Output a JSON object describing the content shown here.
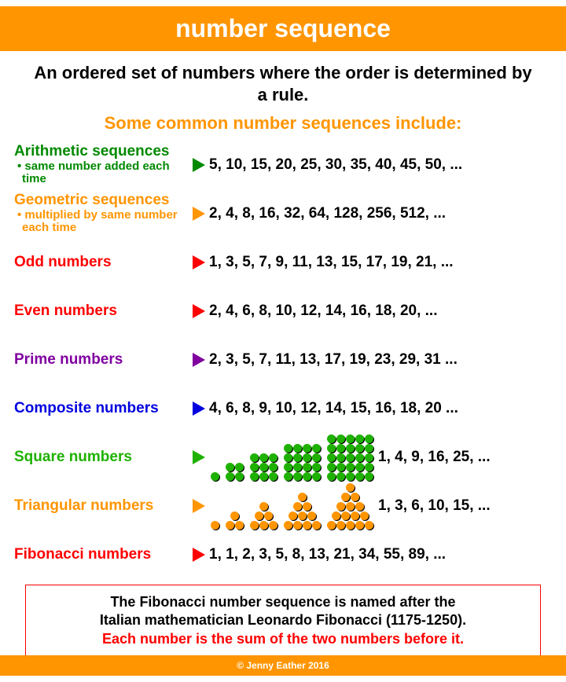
{
  "colors": {
    "orange": "#ff9500",
    "green": "#008a00",
    "red": "#ff0000",
    "purple": "#8000a0",
    "blue": "#0000e0",
    "lime": "#1eb100",
    "black": "#000000"
  },
  "title": "number sequence",
  "definition": "An ordered set of numbers where the order is determined by a rule.",
  "subtitle": "Some common number sequences include:",
  "rows": [
    {
      "label": "Arithmetic sequences",
      "sub": "• same number added each time",
      "label_color": "green",
      "arrow_color": "green",
      "sequence": "5, 10, 15, 20, 25, 30, 35, 40, 45, 50, ..."
    },
    {
      "label": "Geometric sequences",
      "sub": "• multiplied by same number each time",
      "label_color": "orange",
      "arrow_color": "orange",
      "sequence": "2, 4, 8, 16, 32, 64, 128, 256, 512, ..."
    },
    {
      "label": "Odd numbers",
      "label_color": "red",
      "arrow_color": "red",
      "sequence": "1, 3, 5, 7, 9, 11, 13, 15, 17, 19, 21, ..."
    },
    {
      "label": "Even numbers",
      "label_color": "red",
      "arrow_color": "red",
      "sequence": "2, 4, 6, 8, 10, 12, 14, 16, 18, 20, ..."
    },
    {
      "label": "Prime numbers",
      "label_color": "purple",
      "arrow_color": "purple",
      "sequence": "2, 3, 5, 7, 11, 13, 17, 19, 23, 29, 31 ..."
    },
    {
      "label": "Composite numbers",
      "label_color": "blue",
      "arrow_color": "blue",
      "sequence": "4, 6, 8, 9, 10, 12, 14, 15, 16, 18, 20 ..."
    },
    {
      "label": "Square numbers",
      "label_color": "lime",
      "arrow_color": "lime",
      "sequence": "1, 4, 9, 16, 25, ...",
      "visual": "squares"
    },
    {
      "label": "Triangular numbers",
      "label_color": "orange",
      "arrow_color": "orange",
      "sequence": "1, 3, 6, 10, 15, ...",
      "visual": "triangles"
    },
    {
      "label": "Fibonacci numbers",
      "label_color": "red",
      "arrow_color": "red",
      "sequence": "1, 1, 2, 3, 5, 8, 13, 21, 34, 55, 89, ..."
    }
  ],
  "note": {
    "line1": "The Fibonacci number sequence is named after the",
    "line2": "Italian mathematician Leonardo Fibonacci (1175-1250).",
    "line3": "Each number is the sum of the two numbers before it."
  },
  "footer": "© Jenny Eather 2016",
  "squares_viz": [
    1,
    2,
    3,
    4,
    5
  ],
  "triangles_viz": [
    1,
    2,
    3,
    4,
    5
  ]
}
